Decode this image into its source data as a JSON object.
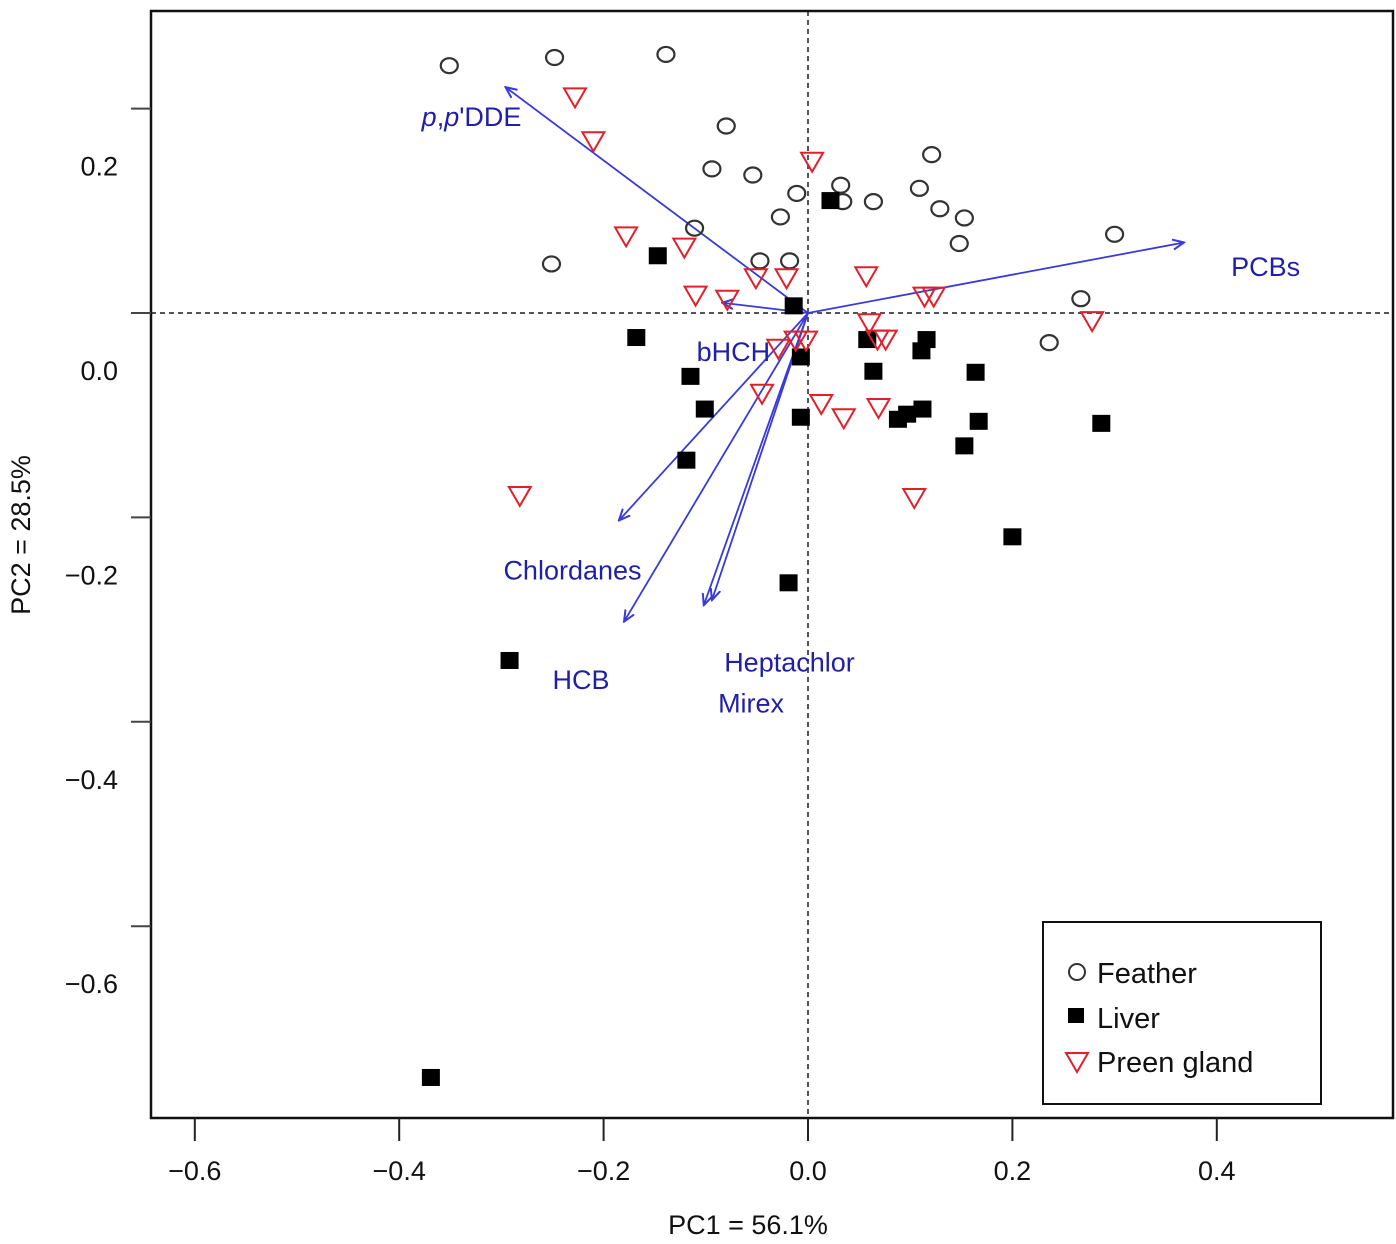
{
  "chart_data": {
    "type": "scatter",
    "subtype": "PCA biplot",
    "title": "",
    "xlabel": "PC1 = 56.1%",
    "ylabel": "PC2 = 28.5%",
    "xlim": [
      -0.64,
      0.57
    ],
    "ylim": [
      -0.79,
      0.29
    ],
    "x_ticks": [
      -0.6,
      -0.4,
      -0.2,
      0.0,
      0.2,
      0.4
    ],
    "x_tick_labels": [
      "−0.6",
      "−0.4",
      "−0.2",
      "0.0",
      "0.2",
      "0.4"
    ],
    "y_ticks": [
      0.2,
      0.0,
      -0.2,
      -0.4,
      -0.6
    ],
    "y_tick_labels": [
      "0.2",
      "0.0",
      "−0.2",
      "−0.4",
      "−0.6"
    ],
    "reference_lines": {
      "x": 0.0,
      "y": 0.0,
      "style": "dotted"
    },
    "grid": false,
    "legend": {
      "position": "bottom-right",
      "entries": [
        {
          "label": "Feather",
          "marker": "open-circle",
          "color": "#333333"
        },
        {
          "label": "Liver",
          "marker": "filled-square",
          "color": "#000000"
        },
        {
          "label": "Preen gland",
          "marker": "open-down-triangle",
          "color": "#e0202a"
        }
      ]
    },
    "series": [
      {
        "name": "Feather",
        "marker": "open-circle",
        "color": "#333333",
        "points": [
          [
            -0.351,
            0.242
          ],
          [
            -0.248,
            0.25
          ],
          [
            -0.139,
            0.253
          ],
          [
            -0.08,
            0.183
          ],
          [
            -0.094,
            0.141
          ],
          [
            -0.054,
            0.135
          ],
          [
            -0.011,
            0.117
          ],
          [
            0.032,
            0.125
          ],
          [
            0.034,
            0.109
          ],
          [
            0.064,
            0.109
          ],
          [
            0.121,
            0.155
          ],
          [
            0.109,
            0.122
          ],
          [
            0.129,
            0.102
          ],
          [
            0.153,
            0.093
          ],
          [
            0.148,
            0.068
          ],
          [
            -0.027,
            0.094
          ],
          [
            -0.111,
            0.083
          ],
          [
            -0.251,
            0.048
          ],
          [
            -0.047,
            0.051
          ],
          [
            -0.018,
            0.051
          ],
          [
            0.3,
            0.077
          ],
          [
            0.267,
            0.014
          ],
          [
            0.236,
            -0.029
          ]
        ]
      },
      {
        "name": "Liver",
        "marker": "filled-square",
        "color": "#000000",
        "points": [
          [
            0.022,
            0.11
          ],
          [
            -0.147,
            0.056
          ],
          [
            -0.014,
            0.007
          ],
          [
            -0.168,
            -0.024
          ],
          [
            -0.115,
            -0.062
          ],
          [
            -0.101,
            -0.094
          ],
          [
            -0.119,
            -0.144
          ],
          [
            -0.007,
            -0.043
          ],
          [
            -0.007,
            -0.102
          ],
          [
            0.058,
            -0.026
          ],
          [
            0.064,
            -0.057
          ],
          [
            0.116,
            -0.026
          ],
          [
            0.111,
            -0.037
          ],
          [
            0.164,
            -0.058
          ],
          [
            0.088,
            -0.104
          ],
          [
            0.097,
            -0.099
          ],
          [
            0.112,
            -0.094
          ],
          [
            0.167,
            -0.106
          ],
          [
            0.153,
            -0.13
          ],
          [
            0.287,
            -0.108
          ],
          [
            0.2,
            -0.219
          ],
          [
            -0.019,
            -0.264
          ],
          [
            -0.292,
            -0.34
          ],
          [
            -0.369,
            -0.748
          ]
        ]
      },
      {
        "name": "Preen gland",
        "marker": "open-down-triangle",
        "color": "#e0202a",
        "points": [
          [
            -0.228,
            0.211
          ],
          [
            -0.21,
            0.168
          ],
          [
            0.004,
            0.148
          ],
          [
            -0.178,
            0.075
          ],
          [
            -0.121,
            0.064
          ],
          [
            -0.051,
            0.034
          ],
          [
            -0.021,
            0.034
          ],
          [
            0.057,
            0.036
          ],
          [
            -0.11,
            0.017
          ],
          [
            -0.079,
            0.013
          ],
          [
            0.114,
            0.016
          ],
          [
            0.123,
            0.016
          ],
          [
            0.278,
            -0.008
          ],
          [
            0.06,
            -0.01
          ],
          [
            0.068,
            -0.026
          ],
          [
            0.076,
            -0.026
          ],
          [
            -0.029,
            -0.035
          ],
          [
            -0.012,
            -0.027
          ],
          [
            -0.002,
            -0.027
          ],
          [
            -0.045,
            -0.079
          ],
          [
            0.013,
            -0.089
          ],
          [
            0.035,
            -0.103
          ],
          [
            0.069,
            -0.093
          ],
          [
            0.104,
            -0.181
          ],
          [
            -0.282,
            -0.179
          ]
        ]
      }
    ],
    "loadings": {
      "arrow_color": "#3a3ad8",
      "label_color": "#1f1fa8",
      "vectors": [
        {
          "name": "p,p'DDE",
          "x": -0.296,
          "y": 0.221,
          "label_xy": [
            -0.378,
            0.183
          ],
          "italic_prefix": true
        },
        {
          "name": "PCBs",
          "x": 0.368,
          "y": 0.069,
          "label_xy": [
            0.414,
            0.036
          ]
        },
        {
          "name": "bHCH",
          "x": -0.084,
          "y": 0.01,
          "label_xy": [
            -0.109,
            -0.047
          ]
        },
        {
          "name": "Chlordanes",
          "x": -0.185,
          "y": -0.203,
          "label_xy": [
            -0.298,
            -0.261
          ]
        },
        {
          "name": "HCB",
          "x": -0.18,
          "y": -0.302,
          "label_xy": [
            -0.25,
            -0.368
          ]
        },
        {
          "name": "Heptachlor",
          "x": -0.102,
          "y": -0.286,
          "label_xy": [
            -0.082,
            -0.351
          ]
        },
        {
          "name": "Mirex",
          "x": -0.094,
          "y": -0.281,
          "label_xy": [
            -0.088,
            -0.391
          ]
        }
      ]
    }
  }
}
